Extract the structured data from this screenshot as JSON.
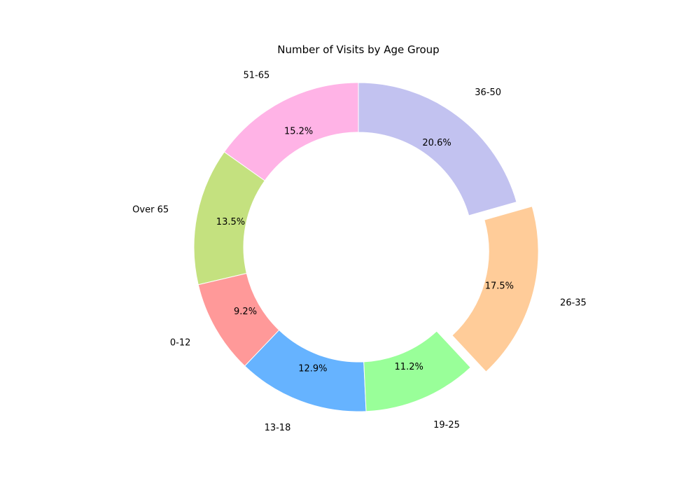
{
  "chart_data": {
    "type": "pie",
    "style": "donut",
    "title": "Number of Visits by Age Group",
    "start_angle_deg": 90,
    "direction": "counterclockwise",
    "slices": [
      {
        "label": "51-65",
        "percent": 15.2,
        "percent_text": "15.2%",
        "color": "#ffb3e6",
        "exploded": false
      },
      {
        "label": "Over 65",
        "percent": 13.5,
        "percent_text": "13.5%",
        "color": "#c4e17f",
        "exploded": false
      },
      {
        "label": "0-12",
        "percent": 9.2,
        "percent_text": "9.2%",
        "color": "#ff9999",
        "exploded": false
      },
      {
        "label": "13-18",
        "percent": 12.9,
        "percent_text": "12.9%",
        "color": "#66b3ff",
        "exploded": false
      },
      {
        "label": "19-25",
        "percent": 11.2,
        "percent_text": "11.2%",
        "color": "#99ff99",
        "exploded": false
      },
      {
        "label": "26-35",
        "percent": 17.5,
        "percent_text": "17.5%",
        "color": "#ffcc99",
        "exploded": true
      },
      {
        "label": "36-50",
        "percent": 20.6,
        "percent_text": "20.6%",
        "color": "#c2c2f0",
        "exploded": false
      }
    ]
  }
}
